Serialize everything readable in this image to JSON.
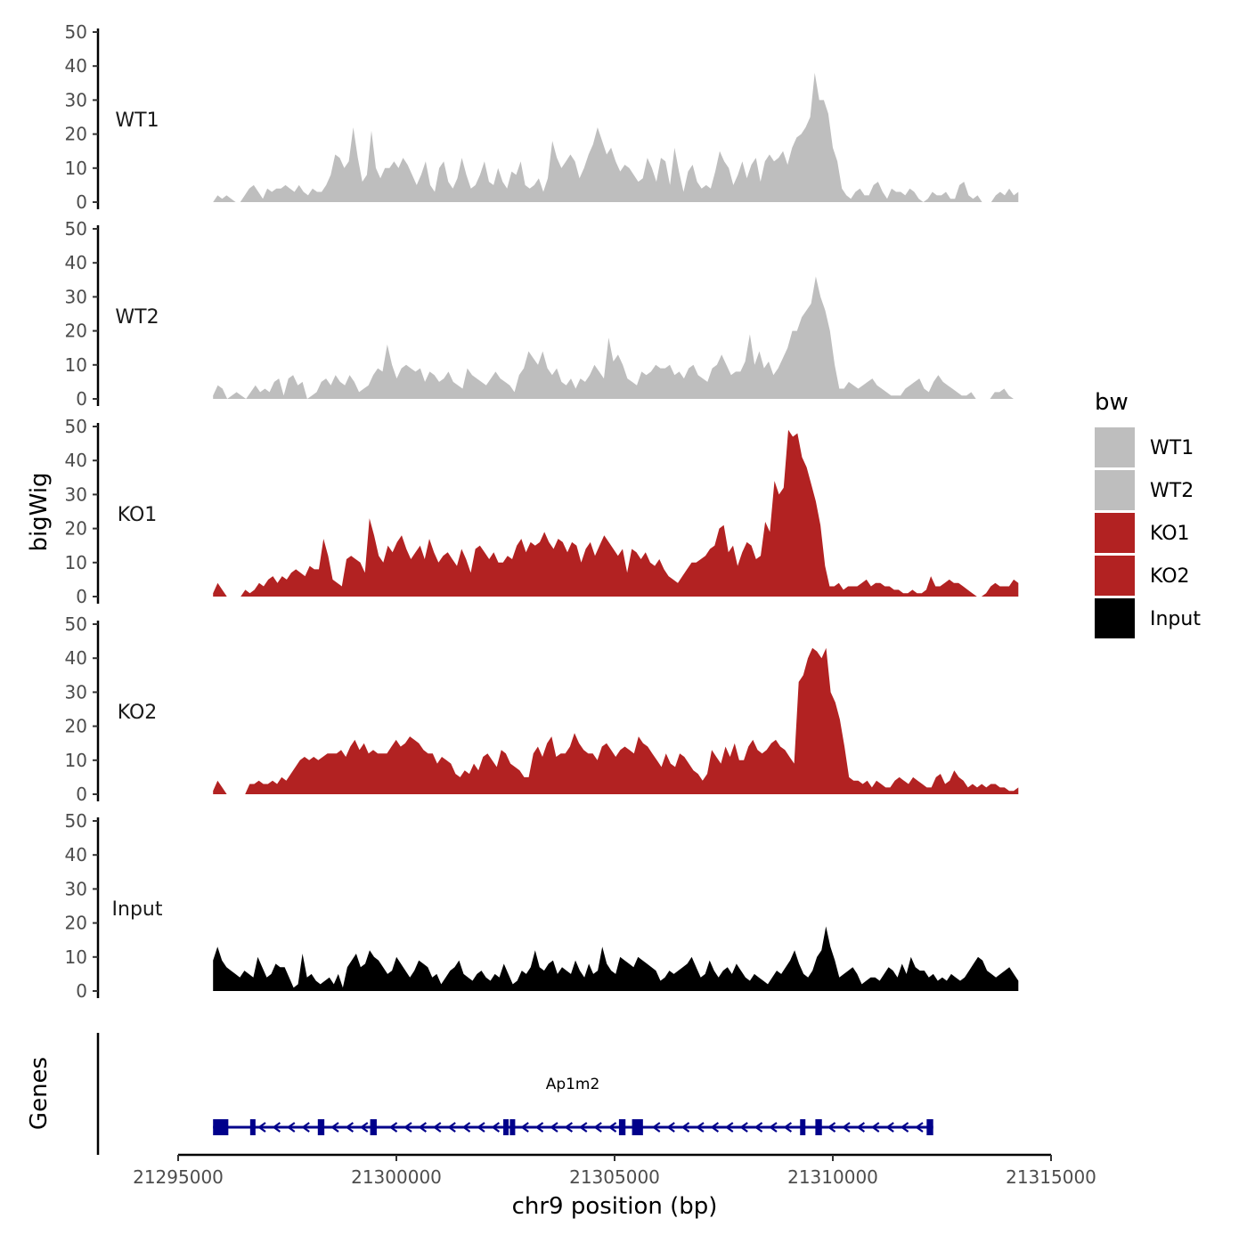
{
  "chart_data": {
    "type": "area",
    "ylabel": "bigWig",
    "genes_label": "Genes",
    "xlabel": "chr9 position (bp)",
    "xlim": [
      21295000,
      21315000
    ],
    "ylim": [
      0,
      50
    ],
    "x_ticks": [
      21295000,
      21300000,
      21305000,
      21310000,
      21315000
    ],
    "x_tick_labels": [
      "21295000",
      "21300000",
      "21305000",
      "21310000",
      "21315000"
    ],
    "y_ticks": [
      0,
      10,
      20,
      30,
      40,
      50
    ],
    "y_tick_labels": [
      "0",
      "10",
      "20",
      "30",
      "40",
      "50"
    ],
    "legend": {
      "title": "bw",
      "entries": [
        {
          "label": "WT1",
          "color": "#bebebe"
        },
        {
          "label": "WT2",
          "color": "#bebebe"
        },
        {
          "label": "KO1",
          "color": "#b22222"
        },
        {
          "label": "KO2",
          "color": "#b22222"
        },
        {
          "label": "Input",
          "color": "#000000"
        }
      ]
    },
    "tracks": [
      {
        "name": "WT1",
        "color": "#bebebe",
        "x_start": 21295800,
        "x_end": 21314250,
        "values": [
          0,
          2,
          1,
          2,
          1,
          0,
          0,
          2,
          4,
          5,
          3,
          1,
          4,
          3,
          4,
          4,
          5,
          4,
          3,
          5,
          3,
          2,
          4,
          3,
          3,
          5,
          8,
          14,
          13,
          10,
          12,
          22,
          13,
          6,
          8,
          21,
          10,
          7,
          10,
          10,
          12,
          10,
          13,
          11,
          8,
          5,
          8,
          12,
          5,
          3,
          10,
          12,
          6,
          4,
          7,
          13,
          8,
          4,
          5,
          8,
          12,
          6,
          5,
          10,
          6,
          4,
          9,
          8,
          12,
          5,
          4,
          5,
          7,
          3,
          7,
          18,
          13,
          10,
          12,
          14,
          12,
          7,
          10,
          14,
          17,
          22,
          18,
          14,
          16,
          12,
          9,
          11,
          10,
          8,
          6,
          7,
          13,
          10,
          6,
          13,
          12,
          5,
          16,
          9,
          3,
          9,
          11,
          6,
          4,
          5,
          4,
          9,
          15,
          12,
          10,
          5,
          8,
          12,
          7,
          11,
          13,
          6,
          12,
          14,
          12,
          13,
          15,
          11,
          16,
          19,
          20,
          22,
          25,
          38,
          30,
          30,
          26,
          16,
          12,
          4,
          2,
          1,
          3,
          4,
          2,
          2,
          5,
          6,
          3,
          1,
          4,
          3,
          3,
          2,
          4,
          3,
          1,
          0,
          1,
          3,
          2,
          2,
          3,
          1,
          1,
          5,
          6,
          2,
          1,
          2,
          0,
          0,
          0,
          2,
          3,
          2,
          4,
          2,
          3
        ]
      },
      {
        "name": "WT2",
        "color": "#bebebe",
        "x_start": 21295800,
        "x_end": 21314250,
        "values": [
          1,
          4,
          3,
          0,
          1,
          2,
          1,
          0,
          2,
          4,
          2,
          3,
          2,
          5,
          6,
          1,
          6,
          7,
          4,
          5,
          0,
          1,
          2,
          5,
          6,
          4,
          7,
          5,
          4,
          7,
          5,
          2,
          3,
          4,
          7,
          9,
          8,
          16,
          10,
          6,
          9,
          10,
          9,
          8,
          9,
          5,
          8,
          7,
          5,
          6,
          8,
          5,
          4,
          3,
          9,
          7,
          6,
          5,
          4,
          6,
          8,
          6,
          5,
          4,
          2,
          7,
          9,
          14,
          12,
          10,
          14,
          9,
          7,
          9,
          5,
          4,
          6,
          3,
          6,
          5,
          7,
          10,
          8,
          6,
          18,
          11,
          13,
          10,
          6,
          5,
          4,
          8,
          7,
          8,
          10,
          9,
          9,
          10,
          7,
          8,
          6,
          9,
          10,
          7,
          6,
          5,
          9,
          10,
          13,
          10,
          7,
          8,
          8,
          11,
          19,
          10,
          14,
          9,
          11,
          7,
          9,
          12,
          15,
          20,
          20,
          24,
          26,
          28,
          36,
          30,
          26,
          20,
          10,
          3,
          3,
          5,
          4,
          3,
          4,
          5,
          6,
          4,
          3,
          2,
          1,
          1,
          1,
          3,
          4,
          5,
          6,
          3,
          2,
          5,
          7,
          5,
          4,
          3,
          2,
          1,
          1,
          2,
          0,
          0,
          0,
          0,
          2,
          2,
          3,
          1,
          0,
          0
        ]
      },
      {
        "name": "KO1",
        "color": "#b22222",
        "x_start": 21295800,
        "x_end": 21314250,
        "values": [
          1,
          4,
          2,
          0,
          0,
          0,
          0,
          2,
          1,
          2,
          4,
          3,
          5,
          6,
          4,
          6,
          5,
          7,
          8,
          7,
          6,
          9,
          8,
          8,
          17,
          12,
          5,
          4,
          3,
          11,
          12,
          11,
          10,
          7,
          23,
          18,
          12,
          10,
          15,
          13,
          16,
          18,
          14,
          11,
          13,
          15,
          11,
          17,
          13,
          10,
          12,
          13,
          11,
          9,
          14,
          11,
          7,
          14,
          15,
          13,
          11,
          13,
          10,
          10,
          12,
          11,
          15,
          17,
          13,
          16,
          15,
          16,
          19,
          16,
          14,
          17,
          16,
          13,
          16,
          15,
          10,
          14,
          16,
          12,
          15,
          18,
          16,
          14,
          12,
          14,
          7,
          14,
          13,
          11,
          13,
          10,
          9,
          11,
          8,
          6,
          5,
          4,
          6,
          8,
          10,
          10,
          11,
          12,
          14,
          15,
          20,
          21,
          13,
          15,
          9,
          13,
          16,
          15,
          11,
          12,
          22,
          19,
          34,
          30,
          32,
          49,
          47,
          48,
          41,
          38,
          33,
          28,
          21,
          9,
          3,
          3,
          4,
          2,
          3,
          3,
          3,
          4,
          5,
          3,
          4,
          4,
          3,
          3,
          2,
          2,
          1,
          1,
          2,
          1,
          1,
          2,
          6,
          3,
          3,
          4,
          5,
          4,
          4,
          3,
          2,
          1,
          0,
          0,
          1,
          3,
          4,
          3,
          3,
          3,
          5,
          4
        ]
      },
      {
        "name": "KO2",
        "color": "#b22222",
        "x_start": 21295800,
        "x_end": 21314250,
        "values": [
          1,
          4,
          2,
          0,
          0,
          0,
          0,
          0,
          3,
          3,
          4,
          3,
          3,
          4,
          3,
          5,
          4,
          6,
          8,
          10,
          11,
          10,
          11,
          10,
          11,
          12,
          12,
          12,
          13,
          11,
          14,
          16,
          13,
          15,
          12,
          13,
          12,
          12,
          12,
          14,
          16,
          14,
          15,
          17,
          16,
          15,
          13,
          12,
          12,
          9,
          11,
          10,
          9,
          6,
          5,
          7,
          6,
          9,
          7,
          11,
          12,
          10,
          8,
          13,
          12,
          9,
          8,
          7,
          5,
          5,
          12,
          14,
          11,
          15,
          17,
          11,
          12,
          12,
          14,
          18,
          15,
          13,
          12,
          12,
          10,
          14,
          15,
          13,
          11,
          13,
          14,
          13,
          12,
          17,
          15,
          14,
          12,
          10,
          8,
          12,
          9,
          8,
          12,
          11,
          9,
          7,
          6,
          4,
          6,
          13,
          11,
          9,
          14,
          11,
          15,
          10,
          10,
          14,
          16,
          13,
          12,
          13,
          15,
          16,
          14,
          13,
          11,
          9,
          33,
          35,
          40,
          43,
          42,
          40,
          43,
          30,
          27,
          22,
          14,
          5,
          4,
          4,
          3,
          4,
          2,
          4,
          3,
          2,
          2,
          4,
          5,
          4,
          3,
          5,
          4,
          3,
          2,
          2,
          5,
          6,
          3,
          4,
          7,
          5,
          4,
          2,
          3,
          2,
          3,
          2,
          3,
          3,
          2,
          2,
          1,
          1,
          2
        ]
      },
      {
        "name": "Input",
        "color": "#000000",
        "x_start": 21295800,
        "x_end": 21314250,
        "values": [
          9,
          13,
          9,
          7,
          6,
          5,
          4,
          6,
          5,
          4,
          10,
          7,
          4,
          5,
          8,
          7,
          7,
          4,
          1,
          2,
          11,
          4,
          5,
          3,
          2,
          3,
          4,
          2,
          5,
          1,
          7,
          9,
          11,
          7,
          8,
          12,
          10,
          9,
          7,
          5,
          6,
          10,
          8,
          6,
          4,
          6,
          9,
          8,
          7,
          4,
          5,
          2,
          4,
          6,
          7,
          9,
          5,
          4,
          3,
          5,
          6,
          4,
          3,
          5,
          4,
          8,
          5,
          2,
          3,
          6,
          5,
          7,
          12,
          7,
          6,
          8,
          9,
          5,
          7,
          6,
          5,
          9,
          6,
          4,
          8,
          5,
          6,
          13,
          8,
          6,
          5,
          10,
          9,
          8,
          7,
          10,
          9,
          8,
          7,
          6,
          3,
          4,
          6,
          5,
          6,
          7,
          8,
          10,
          7,
          4,
          5,
          9,
          6,
          4,
          6,
          7,
          5,
          8,
          6,
          4,
          3,
          5,
          4,
          3,
          2,
          4,
          6,
          5,
          7,
          9,
          12,
          8,
          5,
          4,
          6,
          10,
          12,
          19,
          13,
          9,
          4,
          5,
          6,
          7,
          5,
          2,
          3,
          4,
          4,
          3,
          5,
          7,
          6,
          4,
          8,
          5,
          10,
          7,
          6,
          6,
          4,
          5,
          3,
          4,
          3,
          5,
          4,
          3,
          4,
          6,
          8,
          10,
          9,
          6,
          5,
          4,
          5,
          6,
          7,
          5,
          3
        ]
      }
    ],
    "gene": {
      "name": "Ap1m2",
      "start": 21295800,
      "end": 21312300,
      "strand": "-",
      "exons": [
        [
          21295800,
          21296150
        ],
        [
          21296650,
          21296700
        ],
        [
          21298200,
          21298350
        ],
        [
          21299400,
          21299550
        ],
        [
          21302450,
          21302500
        ],
        [
          21302600,
          21302700
        ],
        [
          21305100,
          21305250
        ],
        [
          21305400,
          21305650
        ],
        [
          21309250,
          21309350
        ],
        [
          21309600,
          21309750
        ],
        [
          21312150,
          21312300
        ]
      ]
    }
  }
}
